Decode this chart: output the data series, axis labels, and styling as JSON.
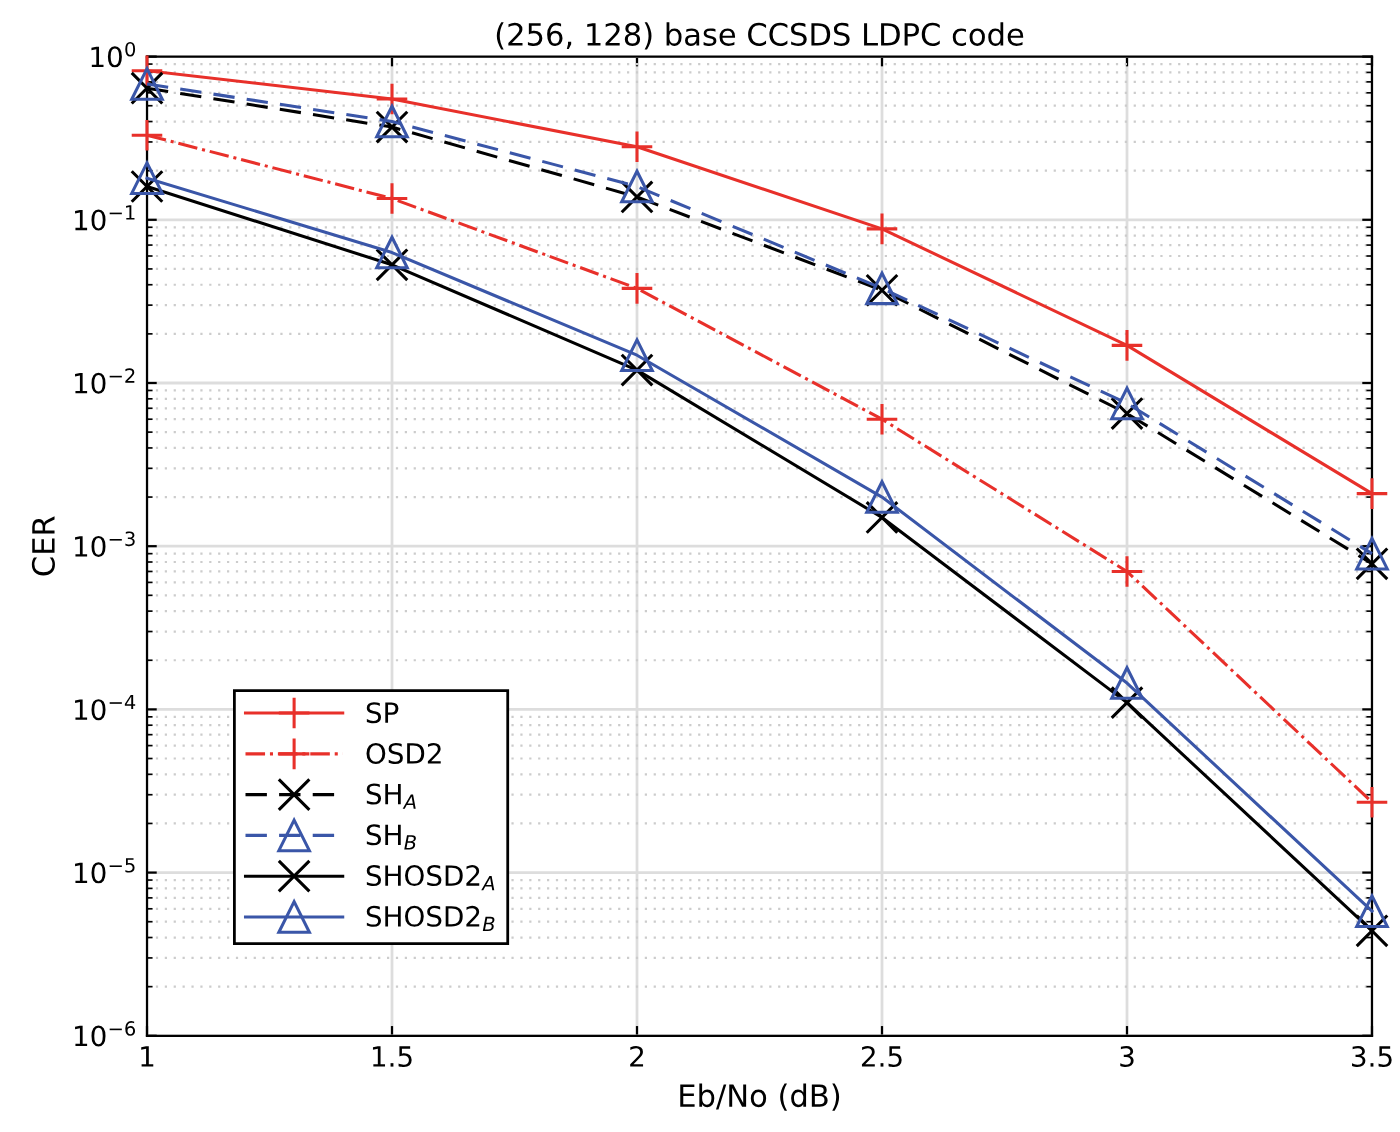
{
  "chart_data": {
    "type": "line",
    "title": "(256, 128) base CCSDS LDPC code",
    "xlabel": "Eb/No (dB)",
    "ylabel": "CER",
    "log": "y",
    "x": [
      1,
      1.5,
      2,
      2.5,
      3,
      3.5
    ],
    "series": [
      {
        "name": "SP",
        "color": "#e8302a",
        "marker": "plus",
        "line_style": "solid",
        "values": [
          0.82,
          0.55,
          0.28,
          0.088,
          0.017,
          0.0021
        ]
      },
      {
        "name": "OSD2",
        "color": "#e8302a",
        "marker": "plus",
        "line_style": "dashdot",
        "values": [
          0.33,
          0.135,
          0.038,
          0.006,
          0.0007,
          2.7e-05
        ]
      },
      {
        "name": "SH$_{A}$",
        "color": "#000000",
        "marker": "cross",
        "line_style": "dashed",
        "values": [
          0.64,
          0.37,
          0.138,
          0.037,
          0.0065,
          0.00078
        ]
      },
      {
        "name": "SH$_{B}$",
        "color": "#3a56a8",
        "marker": "triangle",
        "line_style": "dashed",
        "values": [
          0.68,
          0.4,
          0.16,
          0.038,
          0.0075,
          0.0009
        ]
      },
      {
        "name": "SHOSD2$_{A}$",
        "color": "#000000",
        "marker": "cross",
        "line_style": "solid",
        "values": [
          0.16,
          0.053,
          0.012,
          0.0015,
          0.00011,
          4.4e-06
        ]
      },
      {
        "name": "SHOSD2$_{B}$",
        "color": "#3a56a8",
        "marker": "triangle",
        "line_style": "solid",
        "values": [
          0.18,
          0.063,
          0.0148,
          0.002,
          0.000145,
          5.8e-06
        ]
      }
    ],
    "xlim": [
      1,
      3.5
    ],
    "xticks": [
      1,
      1.5,
      2,
      2.5,
      3,
      3.5
    ],
    "ylim": [
      1e-06,
      1
    ],
    "yticks": [
      {
        "value": 1e-06,
        "label": "10$^{−6}$"
      },
      {
        "value": 1e-05,
        "label": "10$^{−5}$"
      },
      {
        "value": 0.0001,
        "label": "10$^{−4}$"
      },
      {
        "value": 0.001,
        "label": "10$^{−3}$"
      },
      {
        "value": 0.01,
        "label": "10$^{−2}$"
      },
      {
        "value": 0.1,
        "label": "10$^{−1}$"
      },
      {
        "value": 1,
        "label": "10$^{0}$"
      }
    ],
    "grid": true,
    "legend": "bottom left"
  }
}
